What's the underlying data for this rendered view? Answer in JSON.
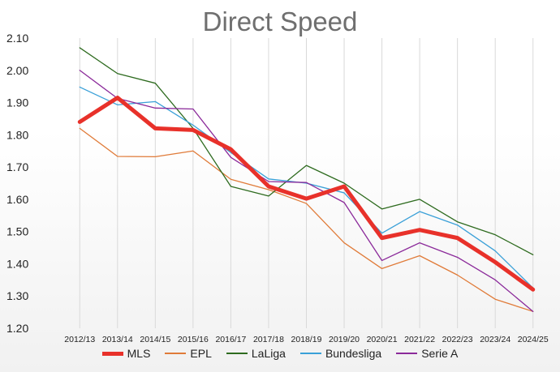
{
  "chart_data": {
    "type": "line",
    "title": "Direct Speed",
    "xlabel": "",
    "ylabel": "",
    "ylim": [
      1.2,
      2.1
    ],
    "y_ticks": [
      "1.20",
      "1.30",
      "1.40",
      "1.50",
      "1.60",
      "1.70",
      "1.80",
      "1.90",
      "2.00",
      "2.10"
    ],
    "grid": "vertical",
    "legend_position": "bottom",
    "categories": [
      "2012/13",
      "2013/14",
      "2014/15",
      "2015/16",
      "2016/17",
      "2017/18",
      "2018/19",
      "2019/20",
      "2020/21",
      "2021/22",
      "2022/23",
      "2023/24",
      "2024/25"
    ],
    "series": [
      {
        "name": "MLS",
        "color": "#e8312a",
        "width": 5,
        "values": [
          1.84,
          1.915,
          1.82,
          1.815,
          1.755,
          1.64,
          1.602,
          1.64,
          1.48,
          1.505,
          1.48,
          1.405,
          1.32
        ]
      },
      {
        "name": "EPL",
        "color": "#e07b39",
        "width": 1.3,
        "values": [
          1.82,
          1.733,
          1.732,
          1.75,
          1.662,
          1.63,
          1.587,
          1.465,
          1.385,
          1.425,
          1.365,
          1.29,
          1.252
        ]
      },
      {
        "name": "LaLiga",
        "color": "#2e6b1f",
        "width": 1.3,
        "values": [
          2.07,
          1.99,
          1.96,
          1.82,
          1.64,
          1.61,
          1.705,
          1.65,
          1.57,
          1.6,
          1.53,
          1.49,
          1.428
        ]
      },
      {
        "name": "Bundesliga",
        "color": "#3aa0d8",
        "width": 1.3,
        "values": [
          1.948,
          1.893,
          1.903,
          1.83,
          1.745,
          1.663,
          1.65,
          1.62,
          1.495,
          1.562,
          1.52,
          1.44,
          1.325
        ]
      },
      {
        "name": "Serie A",
        "color": "#8b2a9a",
        "width": 1.3,
        "values": [
          2.0,
          1.913,
          1.883,
          1.88,
          1.73,
          1.655,
          1.652,
          1.59,
          1.41,
          1.465,
          1.42,
          1.35,
          1.252
        ]
      }
    ]
  }
}
